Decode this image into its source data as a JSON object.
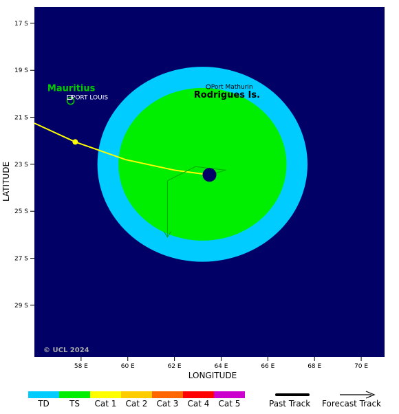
{
  "axes": {
    "xlabel": "LONGITUDE",
    "ylabel": "LATITUDE",
    "lon_range": [
      56,
      71
    ],
    "lat_range": [
      16.3,
      31.2
    ],
    "lon_ticks": [
      "58 E",
      "60 E",
      "62 E",
      "64 E",
      "66 E",
      "68 E",
      "70 E"
    ],
    "lon_tick_values": [
      58,
      60,
      62,
      64,
      66,
      68,
      70
    ],
    "lat_ticks": [
      "17 S",
      "19 S",
      "21 S",
      "23 S",
      "25 S",
      "27 S",
      "29 S"
    ],
    "lat_tick_values": [
      17,
      19,
      21,
      23,
      25,
      27,
      29
    ]
  },
  "labels": {
    "mauritius": "Mauritius",
    "port_louis": "PORT LOUIS",
    "rodrigues": "Rodrigues Is.",
    "port_mathurin": "Port Mathurin",
    "copyright": "© UCL 2024"
  },
  "places": {
    "port_louis": {
      "lon": 57.5,
      "lat": 20.15
    },
    "port_mathurin": {
      "lon": 63.45,
      "lat": 19.7
    },
    "mauritius_island": {
      "lon": 57.55,
      "lat": 20.3
    }
  },
  "storm": {
    "center": {
      "lon": 63.5,
      "lat": 23.45
    },
    "td_wind_radius_lon": 4.5,
    "td_wind_radius_lat": 4.15,
    "ts_wind_radius_lon": 3.6,
    "ts_wind_radius_lat": 3.25,
    "ts_center": {
      "lon": 63.2,
      "lat": 23.0
    },
    "td_center": {
      "lon": 63.2,
      "lat": 23.0
    },
    "past_track": [
      {
        "lon": 56.0,
        "lat": 21.25
      },
      {
        "lon": 57.75,
        "lat": 22.05
      },
      {
        "lon": 59.9,
        "lat": 22.8
      },
      {
        "lon": 62.0,
        "lat": 23.25
      },
      {
        "lon": 63.5,
        "lat": 23.45
      }
    ],
    "past_track_point": {
      "lon": 57.75,
      "lat": 22.05
    },
    "forecast_track": [
      {
        "lon": 63.5,
        "lat": 23.45
      },
      {
        "lon": 64.2,
        "lat": 23.25
      },
      {
        "lon": 62.9,
        "lat": 23.1
      },
      {
        "lon": 61.7,
        "lat": 23.7
      },
      {
        "lon": 61.7,
        "lat": 26.1
      }
    ]
  },
  "legend": {
    "categories": [
      {
        "label": "TD",
        "color": "#00ccff"
      },
      {
        "label": "TS",
        "color": "#00ee00"
      },
      {
        "label": "Cat 1",
        "color": "#ffff00"
      },
      {
        "label": "Cat 2",
        "color": "#ffcc00"
      },
      {
        "label": "Cat 3",
        "color": "#ff6600"
      },
      {
        "label": "Cat 4",
        "color": "#ff0000"
      },
      {
        "label": "Cat 5",
        "color": "#cc00cc"
      }
    ],
    "past_track_label": "Past Track",
    "forecast_track_label": "Forecast Track"
  },
  "colors": {
    "ocean": "#000066",
    "td": "#00ccff",
    "ts": "#00ee00",
    "track": "#ffff00",
    "mauritius_label": "#00cc00",
    "forecast_line": "#00aa00"
  }
}
